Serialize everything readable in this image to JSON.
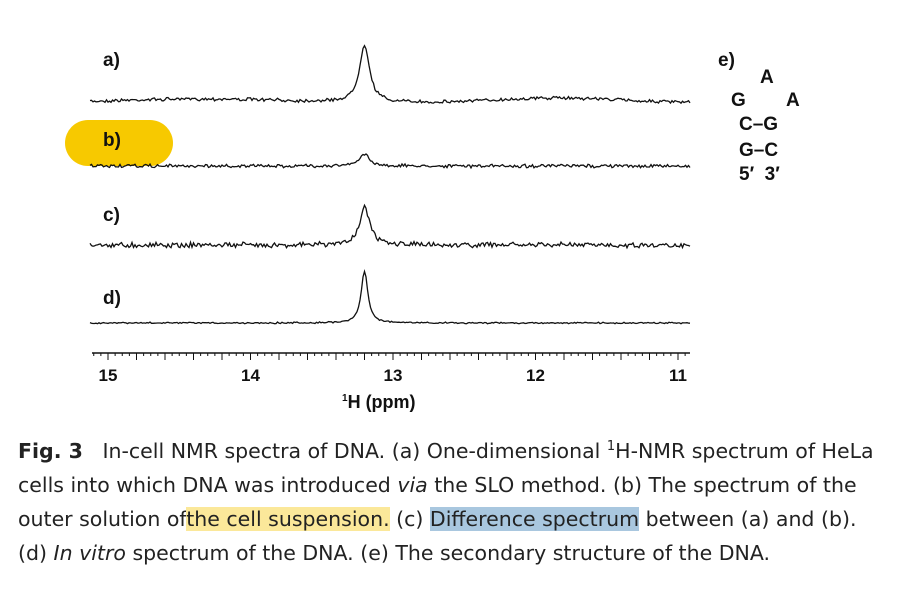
{
  "figure": {
    "panel_labels": [
      "a)",
      "b)",
      "c)",
      "d)",
      "e)"
    ],
    "dna_structure": {
      "loop_top": "A",
      "loop_left": "G",
      "loop_right": "A",
      "pair1": "C–G",
      "pair2": "G–C",
      "ends": "5′  3′"
    }
  },
  "chart_data": {
    "type": "line",
    "xlabel_sup": "1",
    "xlabel": "H (ppm)",
    "xlim": [
      15,
      11
    ],
    "x_ticks": [
      "15",
      "14",
      "13",
      "12",
      "11"
    ],
    "series": [
      {
        "name": "a)",
        "peak_ppm": 13.2,
        "relative_peak_height": 0.9,
        "noise": "moderate",
        "broad_hump": true
      },
      {
        "name": "b)",
        "peak_ppm": 13.2,
        "relative_peak_height": 0.2,
        "noise": "moderate"
      },
      {
        "name": "c)",
        "peak_ppm": 13.2,
        "relative_peak_height": 0.6,
        "noise": "high"
      },
      {
        "name": "d)",
        "peak_ppm": 13.2,
        "relative_peak_height": 1.0,
        "noise": "low"
      }
    ]
  },
  "caption": {
    "label": "Fig. 3",
    "t1": "In-cell NMR spectra of DNA. (a) One-dimensional ",
    "sup": "1",
    "t2": "H-NMR spectrum of HeLa cells into which DNA was introduced ",
    "via": "via",
    "t3": " the SLO method. (b) The spectrum of the outer solution of",
    "hl_yellow": "the cell suspension.",
    "t4": " (c) ",
    "hl_blue": "Difference spectrum",
    "t5": " between (a) and (b). (d) ",
    "invitro": "In vitro",
    "t6": " spectrum of the DNA. (e) The secondary structure of the DNA."
  },
  "colors": {
    "highlight_pill": "#f7c900",
    "highlight_yellow": "#fbe89a",
    "highlight_blue": "#a9c7df"
  }
}
